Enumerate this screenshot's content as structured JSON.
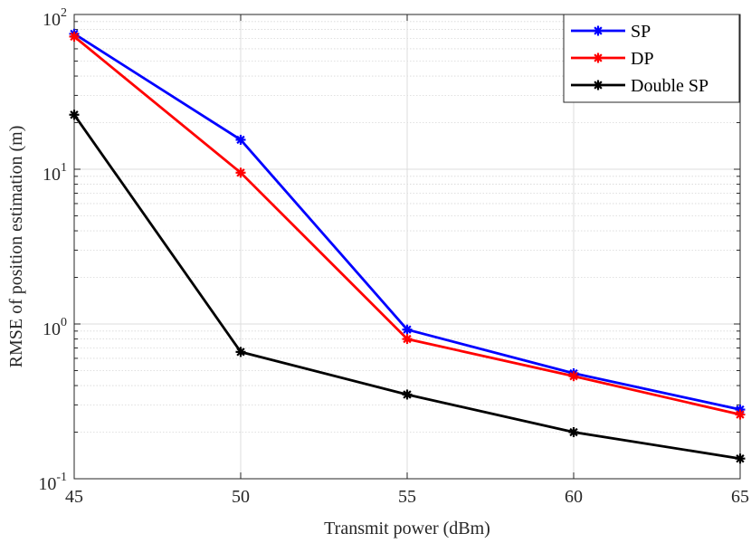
{
  "chart_data": {
    "type": "line",
    "title": "",
    "xlabel": "Transmit power (dBm)",
    "ylabel": "RMSE of position estimation (m)",
    "x": [
      45,
      50,
      55,
      60,
      65
    ],
    "xlim": [
      45,
      65
    ],
    "ylim": [
      0.1,
      100
    ],
    "yscale": "log",
    "grid": true,
    "legend_position": "top-right",
    "x_tick_labels": [
      "45",
      "50",
      "55",
      "60",
      "65"
    ],
    "y_ticks": [
      {
        "value": 100,
        "base": "10",
        "exp": "2"
      },
      {
        "value": 10,
        "base": "10",
        "exp": "1"
      },
      {
        "value": 1,
        "base": "10",
        "exp": "0"
      },
      {
        "value": 0.1,
        "base": "10",
        "exp": "-1"
      }
    ],
    "series": [
      {
        "name": "SP",
        "color": "#0000ff",
        "marker": "asterisk",
        "values": [
          75,
          15.5,
          0.92,
          0.48,
          0.28
        ]
      },
      {
        "name": "DP",
        "color": "#ff0000",
        "marker": "asterisk",
        "values": [
          72,
          9.5,
          0.8,
          0.46,
          0.26
        ]
      },
      {
        "name": "Double SP",
        "color": "#000000",
        "marker": "asterisk",
        "values": [
          22.5,
          0.66,
          0.35,
          0.2,
          0.135
        ]
      }
    ]
  }
}
